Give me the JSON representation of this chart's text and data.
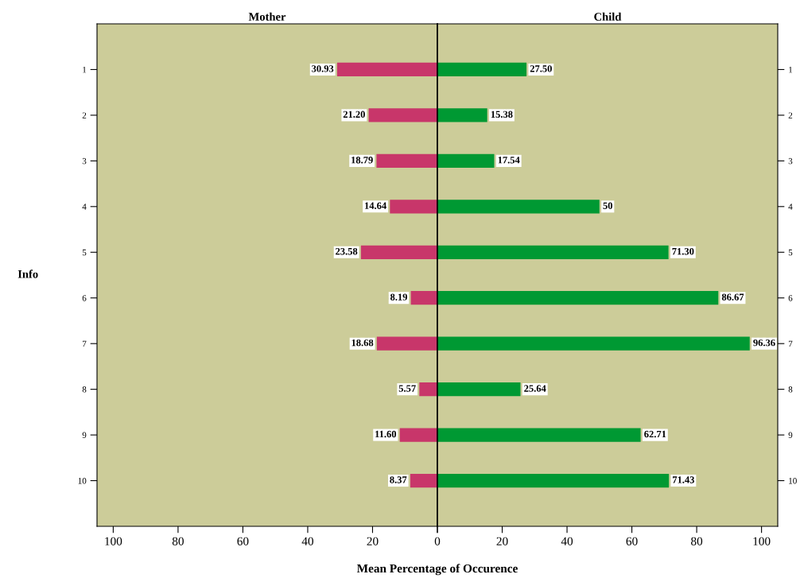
{
  "chart_data": [
    {
      "type": "bar",
      "orientation": "horizontal",
      "title": "Mother",
      "ylabel": "Info",
      "xlabel": "Mean Percentage of Occurence",
      "categories": [
        "1",
        "2",
        "3",
        "4",
        "5",
        "6",
        "7",
        "8",
        "9",
        "10"
      ],
      "values": [
        30.93,
        21.2,
        18.79,
        14.64,
        23.58,
        8.19,
        18.68,
        5.57,
        11.6,
        8.37
      ],
      "value_labels": [
        "30.93",
        "21.20",
        "18.79",
        "14.64",
        "23.58",
        "8.19",
        "18.68",
        "5.57",
        "11.60",
        "8.37"
      ],
      "color": "#c8366a",
      "xlim": [
        105,
        0
      ],
      "xticks": [
        100,
        80,
        60,
        40,
        20,
        {
          "value": 0,
          "label": null
        }
      ],
      "grid": false
    },
    {
      "type": "bar",
      "orientation": "horizontal",
      "title": "Child",
      "categories": [
        "1",
        "2",
        "3",
        "4",
        "5",
        "6",
        "7",
        "8",
        "9",
        "10"
      ],
      "values": [
        27.5,
        15.38,
        17.54,
        50,
        71.3,
        86.67,
        96.36,
        25.64,
        62.71,
        71.43
      ],
      "value_labels": [
        "27.50",
        "15.38",
        "17.54",
        "50",
        "71.30",
        "86.67",
        "96.36",
        "25.64",
        "62.71",
        "71.43"
      ],
      "color": "#009933",
      "xlim": [
        0,
        105
      ],
      "xticks": [
        0,
        20,
        40,
        60,
        80,
        100
      ],
      "grid": false
    }
  ]
}
